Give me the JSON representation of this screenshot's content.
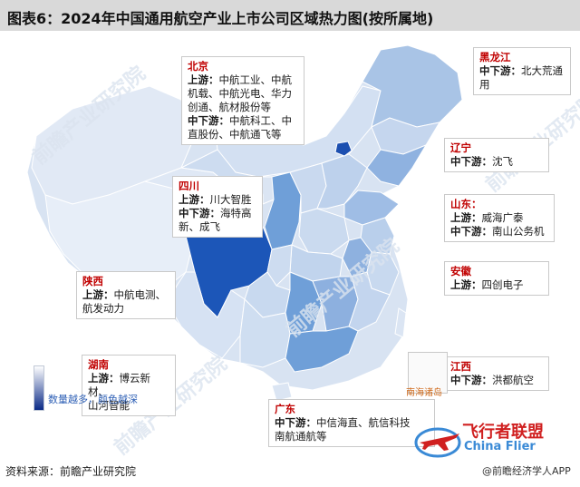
{
  "title": "图表6：2024年中国通用航空产业上市公司区域热力图(按所属地)",
  "colors": {
    "lightest": "#e7eef8",
    "light": "#c5d6ee",
    "mid": "#95b8e2",
    "medium": "#6f9fd8",
    "dark": "#3f78c8",
    "darkest": "#1c4fb0",
    "highlight_text": "#c00000"
  },
  "callouts": [
    {
      "province": "北京",
      "lines": [
        {
          "key": "上游：",
          "text": "中航工业、中航"
        },
        {
          "key": "",
          "text": "机载、中航光电、华力"
        },
        {
          "key": "",
          "text": "创通、航材股份等"
        },
        {
          "key": "中下游：",
          "text": "中航科工、中"
        },
        {
          "key": "",
          "text": "直股份、中航通飞等"
        }
      ]
    },
    {
      "province": "黑龙江",
      "lines": [
        {
          "key": "中下游：",
          "text": "北大荒通"
        },
        {
          "key": "",
          "text": "用"
        }
      ]
    },
    {
      "province": "辽宁",
      "lines": [
        {
          "key": "中下游：",
          "text": "沈飞"
        }
      ]
    },
    {
      "province": "四川",
      "lines": [
        {
          "key": "上游：",
          "text": "川大智胜"
        },
        {
          "key": "中下游：",
          "text": "海特高"
        },
        {
          "key": "",
          "text": "新、成飞"
        }
      ]
    },
    {
      "province": "山东：",
      "lines": [
        {
          "key": "上游：",
          "text": "威海广泰"
        },
        {
          "key": "中下游：",
          "text": "南山公务机"
        }
      ]
    },
    {
      "province": "安徽",
      "lines": [
        {
          "key": "上游：",
          "text": "四创电子"
        }
      ]
    },
    {
      "province": "陕西",
      "lines": [
        {
          "key": "上游：",
          "text": "中航电测、"
        },
        {
          "key": "",
          "text": "航发动力"
        }
      ]
    },
    {
      "province": "湖南",
      "lines": [
        {
          "key": "上游：",
          "text": "博云新材、"
        },
        {
          "key": "",
          "text": "山河智能"
        }
      ]
    },
    {
      "province": "江西",
      "lines": [
        {
          "key": "中下游：",
          "text": "洪都航空"
        }
      ]
    },
    {
      "province": "广东",
      "lines": [
        {
          "key": "中下游：",
          "text": "中信海直、航信科技"
        },
        {
          "key": "",
          "text": "南航通航等"
        }
      ]
    }
  ],
  "legend": {
    "label": "数量越多，颜色越深"
  },
  "nanhai_label": "南海诸岛",
  "watermark_text": "前瞻产业研究院",
  "source": "资料来源：前瞻产业研究院",
  "footer_brand": "@前瞻经济学人APP",
  "logo": {
    "cn": "飞行者联盟",
    "en": "China Flier"
  }
}
